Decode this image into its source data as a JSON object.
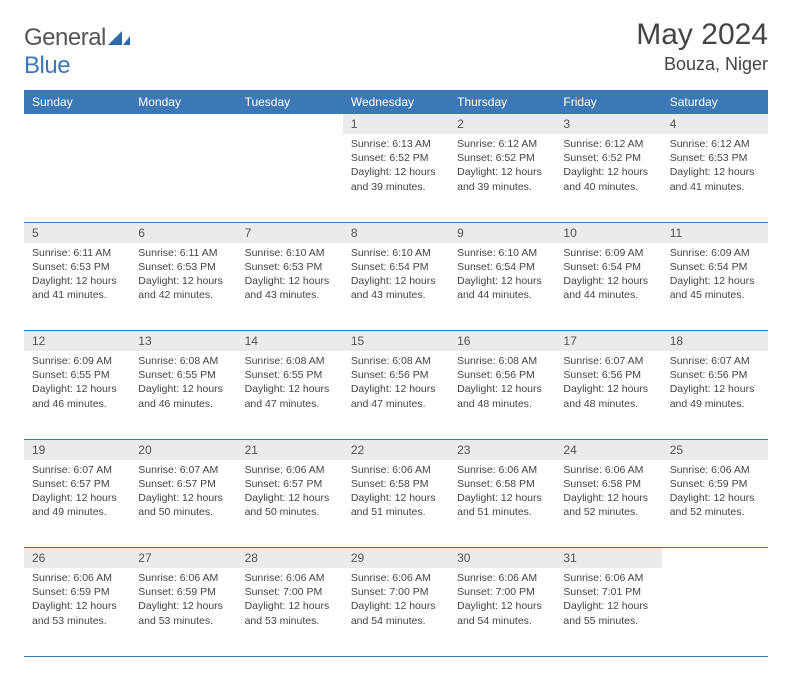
{
  "brand": {
    "part1": "General",
    "part2": "Blue"
  },
  "title": "May 2024",
  "location": "Bouza, Niger",
  "colors": {
    "header_bg": "#3b78b5",
    "header_text": "#ffffff",
    "daynum_bg": "#ebebeb",
    "rule": "#3b78b5",
    "text": "#444444"
  },
  "weekdays": [
    "Sunday",
    "Monday",
    "Tuesday",
    "Wednesday",
    "Thursday",
    "Friday",
    "Saturday"
  ],
  "weeks": [
    [
      null,
      null,
      null,
      {
        "n": "1",
        "sr": "6:13 AM",
        "ss": "6:52 PM",
        "dl": "12 hours and 39 minutes."
      },
      {
        "n": "2",
        "sr": "6:12 AM",
        "ss": "6:52 PM",
        "dl": "12 hours and 39 minutes."
      },
      {
        "n": "3",
        "sr": "6:12 AM",
        "ss": "6:52 PM",
        "dl": "12 hours and 40 minutes."
      },
      {
        "n": "4",
        "sr": "6:12 AM",
        "ss": "6:53 PM",
        "dl": "12 hours and 41 minutes."
      }
    ],
    [
      {
        "n": "5",
        "sr": "6:11 AM",
        "ss": "6:53 PM",
        "dl": "12 hours and 41 minutes."
      },
      {
        "n": "6",
        "sr": "6:11 AM",
        "ss": "6:53 PM",
        "dl": "12 hours and 42 minutes."
      },
      {
        "n": "7",
        "sr": "6:10 AM",
        "ss": "6:53 PM",
        "dl": "12 hours and 43 minutes."
      },
      {
        "n": "8",
        "sr": "6:10 AM",
        "ss": "6:54 PM",
        "dl": "12 hours and 43 minutes."
      },
      {
        "n": "9",
        "sr": "6:10 AM",
        "ss": "6:54 PM",
        "dl": "12 hours and 44 minutes."
      },
      {
        "n": "10",
        "sr": "6:09 AM",
        "ss": "6:54 PM",
        "dl": "12 hours and 44 minutes."
      },
      {
        "n": "11",
        "sr": "6:09 AM",
        "ss": "6:54 PM",
        "dl": "12 hours and 45 minutes."
      }
    ],
    [
      {
        "n": "12",
        "sr": "6:09 AM",
        "ss": "6:55 PM",
        "dl": "12 hours and 46 minutes."
      },
      {
        "n": "13",
        "sr": "6:08 AM",
        "ss": "6:55 PM",
        "dl": "12 hours and 46 minutes."
      },
      {
        "n": "14",
        "sr": "6:08 AM",
        "ss": "6:55 PM",
        "dl": "12 hours and 47 minutes."
      },
      {
        "n": "15",
        "sr": "6:08 AM",
        "ss": "6:56 PM",
        "dl": "12 hours and 47 minutes."
      },
      {
        "n": "16",
        "sr": "6:08 AM",
        "ss": "6:56 PM",
        "dl": "12 hours and 48 minutes."
      },
      {
        "n": "17",
        "sr": "6:07 AM",
        "ss": "6:56 PM",
        "dl": "12 hours and 48 minutes."
      },
      {
        "n": "18",
        "sr": "6:07 AM",
        "ss": "6:56 PM",
        "dl": "12 hours and 49 minutes."
      }
    ],
    [
      {
        "n": "19",
        "sr": "6:07 AM",
        "ss": "6:57 PM",
        "dl": "12 hours and 49 minutes."
      },
      {
        "n": "20",
        "sr": "6:07 AM",
        "ss": "6:57 PM",
        "dl": "12 hours and 50 minutes."
      },
      {
        "n": "21",
        "sr": "6:06 AM",
        "ss": "6:57 PM",
        "dl": "12 hours and 50 minutes."
      },
      {
        "n": "22",
        "sr": "6:06 AM",
        "ss": "6:58 PM",
        "dl": "12 hours and 51 minutes."
      },
      {
        "n": "23",
        "sr": "6:06 AM",
        "ss": "6:58 PM",
        "dl": "12 hours and 51 minutes."
      },
      {
        "n": "24",
        "sr": "6:06 AM",
        "ss": "6:58 PM",
        "dl": "12 hours and 52 minutes."
      },
      {
        "n": "25",
        "sr": "6:06 AM",
        "ss": "6:59 PM",
        "dl": "12 hours and 52 minutes."
      }
    ],
    [
      {
        "n": "26",
        "sr": "6:06 AM",
        "ss": "6:59 PM",
        "dl": "12 hours and 53 minutes."
      },
      {
        "n": "27",
        "sr": "6:06 AM",
        "ss": "6:59 PM",
        "dl": "12 hours and 53 minutes."
      },
      {
        "n": "28",
        "sr": "6:06 AM",
        "ss": "7:00 PM",
        "dl": "12 hours and 53 minutes."
      },
      {
        "n": "29",
        "sr": "6:06 AM",
        "ss": "7:00 PM",
        "dl": "12 hours and 54 minutes."
      },
      {
        "n": "30",
        "sr": "6:06 AM",
        "ss": "7:00 PM",
        "dl": "12 hours and 54 minutes."
      },
      {
        "n": "31",
        "sr": "6:06 AM",
        "ss": "7:01 PM",
        "dl": "12 hours and 55 minutes."
      },
      null
    ]
  ],
  "labels": {
    "sunrise": "Sunrise:",
    "sunset": "Sunset:",
    "daylight": "Daylight:"
  }
}
